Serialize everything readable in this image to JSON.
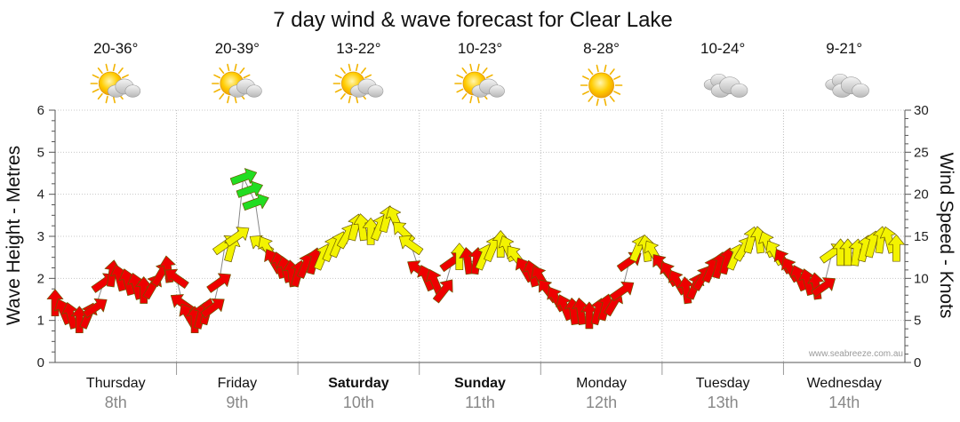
{
  "chart_data": {
    "type": "line",
    "title": "7 day wind & wave forecast for Clear Lake",
    "y_left": {
      "label": "Wave Height - Metres",
      "min": 0,
      "max": 6,
      "ticks": [
        "0",
        "1",
        "2",
        "3",
        "4",
        "5",
        "6"
      ]
    },
    "y_right": {
      "label": "Wind Speed - Knots",
      "min": 0,
      "max": 30,
      "ticks": [
        "0",
        "5",
        "10",
        "15",
        "20",
        "25",
        "30"
      ]
    },
    "grid": true,
    "days": [
      {
        "name": "Thursday",
        "date": "8th",
        "bold": false,
        "temp": "20-36°",
        "icon": "sun-cloud-icon"
      },
      {
        "name": "Friday",
        "date": "9th",
        "bold": false,
        "temp": "20-39°",
        "icon": "sun-cloud-icon"
      },
      {
        "name": "Saturday",
        "date": "10th",
        "bold": true,
        "temp": "13-22°",
        "icon": "sun-cloud-icon"
      },
      {
        "name": "Sunday",
        "date": "11th",
        "bold": true,
        "temp": "10-23°",
        "icon": "sun-cloud-icon"
      },
      {
        "name": "Monday",
        "date": "12th",
        "bold": false,
        "temp": "8-28°",
        "icon": "sun-icon"
      },
      {
        "name": "Tuesday",
        "date": "13th",
        "bold": false,
        "temp": "10-24°",
        "icon": "cloud-icon"
      },
      {
        "name": "Wednesday",
        "date": "14th",
        "bold": false,
        "temp": "9-21°",
        "icon": "cloud-icon"
      }
    ],
    "series": [
      {
        "name": "Wind Speed",
        "units": "knots",
        "x_unit": "days from start of Thursday 8th",
        "x": [
          0.0,
          0.07,
          0.13,
          0.2,
          0.27,
          0.33,
          0.4,
          0.47,
          0.53,
          0.6,
          0.67,
          0.73,
          0.8,
          0.87,
          0.93,
          1.0,
          1.05,
          1.1,
          1.15,
          1.2,
          1.25,
          1.3,
          1.35,
          1.4,
          1.45,
          1.5,
          1.55,
          1.6,
          1.65,
          1.7,
          1.75,
          1.8,
          1.85,
          1.9,
          1.95,
          2.0,
          2.06,
          2.13,
          2.2,
          2.27,
          2.33,
          2.4,
          2.47,
          2.53,
          2.6,
          2.67,
          2.73,
          2.8,
          2.87,
          2.93,
          3.0,
          3.06,
          3.13,
          3.2,
          3.27,
          3.33,
          3.4,
          3.47,
          3.53,
          3.6,
          3.67,
          3.73,
          3.8,
          3.87,
          3.93,
          4.0,
          4.06,
          4.13,
          4.2,
          4.27,
          4.33,
          4.4,
          4.47,
          4.53,
          4.6,
          4.67,
          4.73,
          4.8,
          4.87,
          4.93,
          5.0,
          5.06,
          5.13,
          5.2,
          5.27,
          5.33,
          5.4,
          5.47,
          5.53,
          5.6,
          5.67,
          5.73,
          5.8,
          5.87,
          5.93,
          6.0,
          6.06,
          6.13,
          6.2,
          6.27,
          6.33,
          6.4,
          6.47,
          6.53,
          6.6,
          6.67,
          6.73,
          6.8,
          6.87,
          6.93
        ],
        "values": [
          7,
          6,
          5.5,
          5,
          5.5,
          6.5,
          9.5,
          10.5,
          10,
          9.5,
          9,
          8.5,
          9,
          10.5,
          11,
          10,
          7,
          5.5,
          5,
          5.5,
          6,
          6.5,
          9.5,
          14,
          13.5,
          15,
          22,
          20.5,
          19,
          14,
          13.5,
          12,
          11.5,
          11,
          10.5,
          10.5,
          11.5,
          12,
          12.5,
          13.5,
          14,
          15,
          16,
          16,
          15.5,
          16,
          17,
          17,
          15.5,
          14,
          11,
          10,
          9.5,
          8.5,
          12,
          12.5,
          12,
          12,
          12.5,
          13.5,
          14,
          13.5,
          12.5,
          11,
          10.5,
          10,
          8.5,
          7.5,
          6.5,
          6,
          6,
          5.5,
          6,
          6.5,
          7,
          8.5,
          12,
          13.5,
          13.5,
          13,
          11.5,
          10.5,
          9.5,
          8.5,
          9,
          10,
          11,
          11.5,
          12,
          12.5,
          13.5,
          14.5,
          14.5,
          14,
          13,
          12,
          11,
          10,
          9.5,
          9,
          9,
          13,
          13,
          13,
          13,
          13.5,
          14,
          14.5,
          14.5,
          13.5
        ],
        "colors": {
          "light": "#f3f300",
          "moderate": "#ee0000",
          "strong": "#22dd22"
        }
      }
    ],
    "watermark": "www.seabreeze.com.au"
  }
}
